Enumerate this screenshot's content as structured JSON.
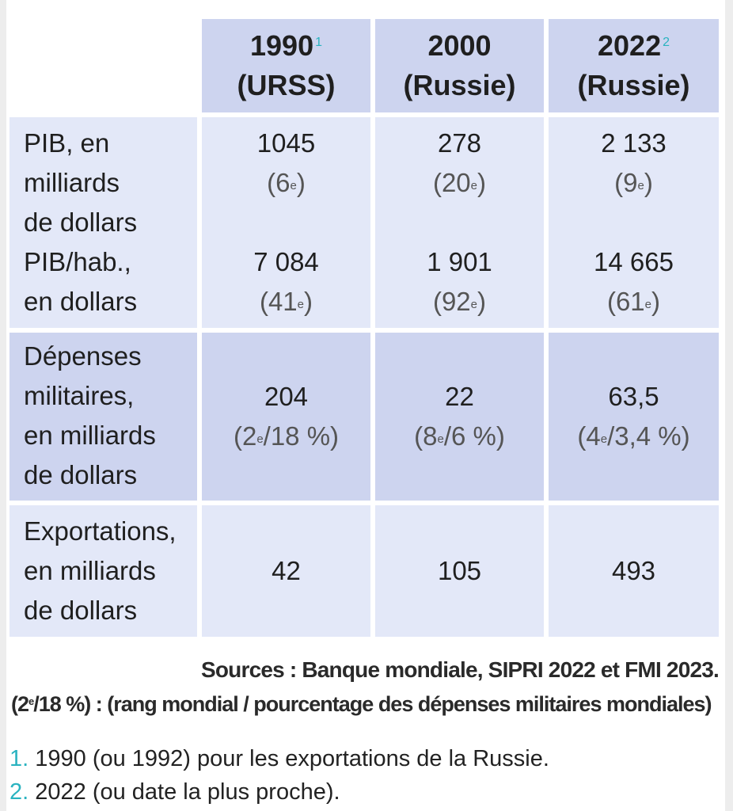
{
  "columns": [
    {
      "year": "1990",
      "note": "1",
      "country": "(URSS)"
    },
    {
      "year": "2000",
      "note": "",
      "country": "(Russie)"
    },
    {
      "year": "2022",
      "note": "2",
      "country": "(Russie)"
    }
  ],
  "rows": {
    "pib": {
      "label": [
        "PIB, en",
        "milliards",
        "de dollars"
      ],
      "values": [
        {
          "value": "1045",
          "rank_pre": "(6",
          "rank_sup": "e",
          "rank_post": ")"
        },
        {
          "value": "278",
          "rank_pre": "(20",
          "rank_sup": "e",
          "rank_post": ")"
        },
        {
          "value": "2 133",
          "rank_pre": "(9",
          "rank_sup": "e",
          "rank_post": ")"
        }
      ]
    },
    "pib_hab": {
      "label": [
        "PIB/hab.,",
        "en dollars"
      ],
      "values": [
        {
          "value": "7 084",
          "rank_pre": "(41",
          "rank_sup": "e",
          "rank_post": ")"
        },
        {
          "value": "1 901",
          "rank_pre": "(92",
          "rank_sup": "e",
          "rank_post": ")"
        },
        {
          "value": "14 665",
          "rank_pre": "(61",
          "rank_sup": "e",
          "rank_post": ")"
        }
      ]
    },
    "depenses": {
      "label": [
        "Dépenses",
        "militaires,",
        "en milliards",
        "de dollars"
      ],
      "values": [
        {
          "value": "204",
          "rank_pre": "(2",
          "rank_sup": "e",
          "rank_post": "/18 %)"
        },
        {
          "value": "22",
          "rank_pre": "(8",
          "rank_sup": "e",
          "rank_post": "/6 %)"
        },
        {
          "value": "63,5",
          "rank_pre": "(4",
          "rank_sup": "e",
          "rank_post": "/3,4 %)"
        }
      ]
    },
    "exportations": {
      "label": [
        "Exportations,",
        "en milliards",
        "de dollars"
      ],
      "values": [
        "42",
        "105",
        "493"
      ]
    }
  },
  "sources": "Sources : Banque mondiale, SIPRI 2022 et FMI 2023.",
  "legend": {
    "pre": "(2",
    "sup": "e",
    "post": "/18 %) : (rang mondial / pourcentage des dépenses militaires mondiales)"
  },
  "footnotes": [
    {
      "num": "1.",
      "text": "1990 (ou 1992) pour les exportations de la Russie."
    },
    {
      "num": "2.",
      "text": "2022 (ou date la plus proche)."
    }
  ],
  "colors": {
    "header_bg": "#cdd4ef",
    "light_bg": "#e3e8f8",
    "accent": "#2ab3c0"
  }
}
